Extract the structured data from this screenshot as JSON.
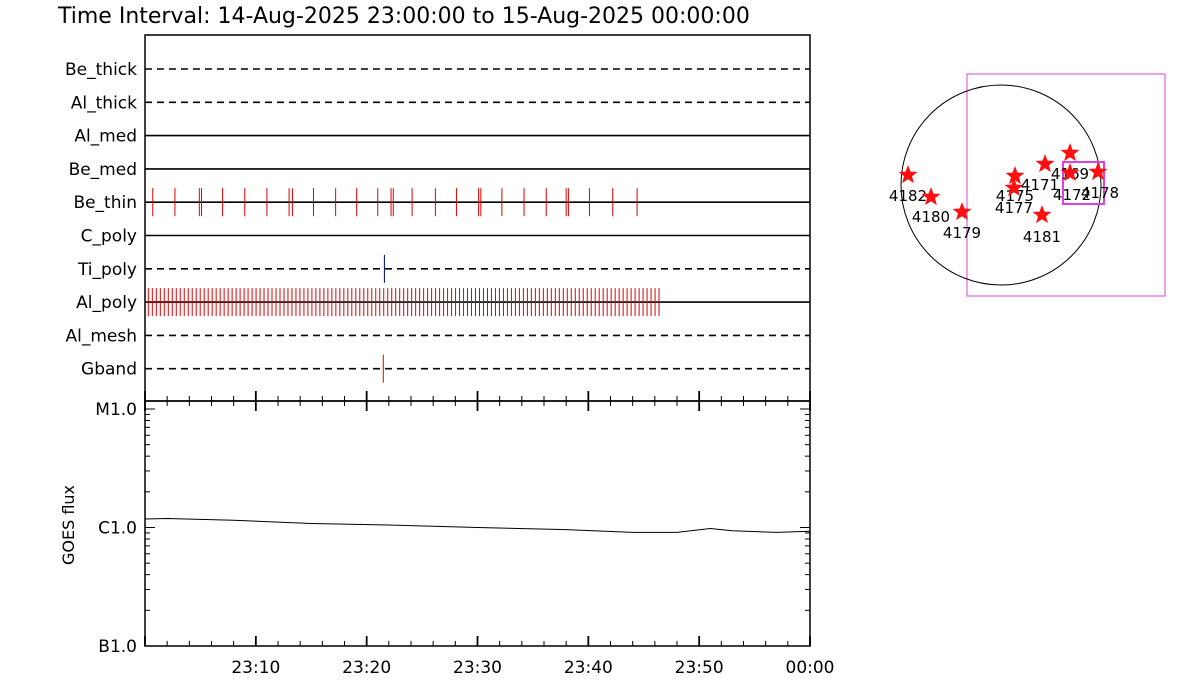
{
  "title": "Time Interval: 14-Aug-2025 23:00:00 to 15-Aug-2025 00:00:00",
  "chart_data": [
    {
      "type": "event-raster",
      "x_range": [
        "23:00",
        "00:00"
      ],
      "filters": [
        {
          "name": "Be_thick",
          "style": "dashed",
          "events": []
        },
        {
          "name": "Al_thick",
          "style": "dashed",
          "events": []
        },
        {
          "name": "Al_med",
          "style": "solid",
          "events": []
        },
        {
          "name": "Be_med",
          "style": "solid",
          "events": []
        },
        {
          "name": "Be_thin",
          "style": "solid",
          "event_color": "#e00000",
          "events": [
            0.7,
            2.7,
            4.9,
            5.1,
            7.0,
            9.0,
            11.0,
            13.0,
            13.3,
            15.2,
            17.2,
            19.1,
            21.0,
            22.2,
            22.4,
            24.1,
            26.2,
            28.1,
            30.1,
            30.3,
            32.2,
            34.2,
            36.2,
            38.0,
            38.2,
            40.1,
            42.2,
            44.4
          ]
        },
        {
          "name": "C_poly",
          "style": "solid",
          "events": []
        },
        {
          "name": "Ti_poly",
          "style": "dashed",
          "event_color": "#000080",
          "events": [
            21.6
          ]
        },
        {
          "name": "Al_poly",
          "style": "solid",
          "event_color": "#e00000",
          "events_range": [
            0.3,
            46.4
          ],
          "events_spacing": 0.36
        },
        {
          "name": "Al_mesh",
          "style": "dashed",
          "events": []
        },
        {
          "name": "Gband",
          "style": "dashed",
          "event_color": "#e00000",
          "events": [
            21.5
          ]
        }
      ]
    },
    {
      "type": "line",
      "ylabel": "GOES flux",
      "y_scale": "log",
      "y_ticks": [
        "M1.0",
        "C1.0",
        "B1.0"
      ],
      "x_ticks": [
        "23:10",
        "23:20",
        "23:30",
        "23:40",
        "23:50",
        "00:00"
      ],
      "x_minutes": [
        0,
        2,
        8,
        15,
        22,
        30,
        38,
        44,
        48,
        51,
        53,
        57,
        60
      ],
      "flux_c_class": [
        1.18,
        1.19,
        1.15,
        1.08,
        1.05,
        1.0,
        0.96,
        0.91,
        0.91,
        0.98,
        0.94,
        0.91,
        0.93
      ]
    }
  ],
  "sun_map": {
    "active_regions": [
      {
        "id": "4182"
      },
      {
        "id": "4180"
      },
      {
        "id": "4179"
      },
      {
        "id": "4175"
      },
      {
        "id": "4177"
      },
      {
        "id": "4171"
      },
      {
        "id": "4169"
      },
      {
        "id": "4172"
      },
      {
        "id": "4178"
      },
      {
        "id": "4181"
      }
    ]
  }
}
